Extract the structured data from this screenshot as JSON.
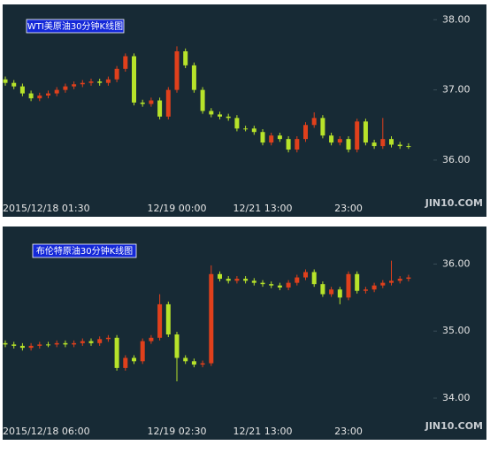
{
  "chart_data": [
    {
      "type": "candlestick",
      "title": "WTI美原油30分钟K线图",
      "watermark": "JIN10.COM",
      "up_color": "#e0401c",
      "down_color": "#b7e32a",
      "background": "#172a35",
      "categories": [
        "2015/12/18 01:30",
        null,
        null,
        null,
        null,
        null,
        null,
        null,
        null,
        null,
        null,
        null,
        null,
        null,
        null,
        null,
        null,
        null,
        null,
        null,
        "12/19 00:00",
        null,
        null,
        null,
        null,
        null,
        null,
        null,
        null,
        null,
        "12/21 13:00",
        null,
        null,
        null,
        null,
        null,
        null,
        null,
        null,
        null,
        "23:00",
        null,
        null,
        null,
        null,
        null,
        null,
        null
      ],
      "open": [
        37.15,
        37.1,
        37.05,
        36.95,
        36.88,
        36.92,
        36.95,
        37.0,
        37.05,
        37.08,
        37.1,
        37.12,
        37.1,
        37.15,
        37.3,
        37.48,
        36.82,
        36.8,
        36.85,
        36.62,
        37.0,
        37.55,
        37.35,
        37.0,
        36.7,
        36.65,
        36.62,
        36.6,
        36.45,
        36.45,
        36.4,
        36.25,
        36.35,
        36.3,
        36.15,
        36.3,
        36.5,
        36.6,
        36.35,
        36.25,
        36.3,
        36.15,
        36.55,
        36.25,
        36.2,
        36.3,
        36.22,
        36.2
      ],
      "high": [
        37.19,
        37.14,
        37.09,
        36.99,
        36.96,
        36.99,
        37.04,
        37.09,
        37.12,
        37.14,
        37.16,
        37.16,
        37.19,
        37.34,
        37.52,
        37.52,
        36.86,
        36.89,
        36.89,
        37.04,
        37.62,
        37.59,
        37.39,
        37.04,
        36.74,
        36.69,
        36.66,
        36.64,
        36.49,
        36.49,
        36.44,
        36.39,
        36.39,
        36.34,
        36.34,
        36.54,
        36.68,
        36.64,
        36.39,
        36.34,
        36.34,
        36.59,
        36.59,
        36.29,
        36.6,
        36.34,
        36.26,
        36.24
      ],
      "low": [
        37.06,
        37.01,
        36.91,
        36.84,
        36.84,
        36.88,
        36.91,
        36.96,
        37.01,
        37.04,
        37.06,
        37.06,
        37.06,
        37.11,
        37.26,
        36.78,
        36.76,
        36.76,
        36.58,
        36.58,
        36.96,
        37.31,
        36.96,
        36.66,
        36.61,
        36.58,
        36.56,
        36.41,
        36.41,
        36.36,
        36.21,
        36.21,
        36.26,
        36.11,
        36.11,
        36.26,
        36.46,
        36.31,
        36.21,
        36.21,
        36.11,
        36.11,
        36.21,
        36.16,
        36.16,
        36.18,
        36.16,
        36.16
      ],
      "close": [
        37.1,
        37.05,
        36.95,
        36.88,
        36.92,
        36.95,
        37.0,
        37.05,
        37.08,
        37.1,
        37.12,
        37.1,
        37.15,
        37.3,
        37.48,
        36.82,
        36.8,
        36.85,
        36.62,
        37.0,
        37.55,
        37.35,
        37.0,
        36.7,
        36.65,
        36.62,
        36.6,
        36.45,
        36.45,
        36.4,
        36.25,
        36.35,
        36.3,
        36.15,
        36.3,
        36.5,
        36.6,
        36.35,
        36.25,
        36.3,
        36.15,
        36.55,
        36.25,
        36.2,
        36.3,
        36.22,
        36.2,
        36.2
      ],
      "ylim": [
        35.47,
        38.18
      ],
      "yticks": [
        {
          "value": 36,
          "label": "36.00"
        },
        {
          "value": 37,
          "label": "37.00"
        },
        {
          "value": 38,
          "label": "38.00"
        }
      ]
    },
    {
      "type": "candlestick",
      "title": "布伦特原油30分钟K线图",
      "watermark": "JIN10.COM",
      "up_color": "#e0401c",
      "down_color": "#b7e32a",
      "background": "#172a35",
      "categories": [
        "2015/12/18 06:00",
        null,
        null,
        null,
        null,
        null,
        null,
        null,
        null,
        null,
        null,
        null,
        null,
        null,
        null,
        null,
        null,
        null,
        null,
        null,
        "12/19 02:30",
        null,
        null,
        null,
        null,
        null,
        null,
        null,
        null,
        null,
        "12/21 13:00",
        null,
        null,
        null,
        null,
        null,
        null,
        null,
        null,
        null,
        "23:00",
        null,
        null,
        null,
        null,
        null,
        null,
        null
      ],
      "open": [
        34.82,
        34.8,
        34.78,
        34.75,
        34.78,
        34.8,
        34.8,
        34.82,
        34.8,
        34.82,
        34.85,
        34.82,
        34.88,
        34.9,
        34.45,
        34.6,
        34.55,
        34.85,
        34.9,
        35.4,
        34.95,
        34.6,
        34.55,
        34.5,
        34.52,
        35.85,
        35.78,
        35.75,
        35.78,
        35.75,
        35.72,
        35.7,
        35.68,
        35.65,
        35.72,
        35.8,
        35.88,
        35.7,
        35.55,
        35.62,
        35.5,
        35.85,
        35.6,
        35.62,
        35.68,
        35.72,
        35.75,
        35.78
      ],
      "high": [
        34.86,
        34.84,
        34.82,
        34.82,
        34.84,
        34.84,
        34.86,
        34.86,
        34.86,
        34.89,
        34.89,
        34.92,
        34.94,
        34.94,
        34.64,
        34.64,
        34.89,
        34.94,
        35.55,
        35.44,
        34.99,
        34.64,
        34.59,
        34.56,
        35.98,
        35.89,
        35.82,
        35.82,
        35.82,
        35.79,
        35.76,
        35.74,
        35.72,
        35.76,
        35.84,
        35.92,
        35.92,
        35.74,
        35.66,
        35.66,
        35.89,
        35.89,
        35.66,
        35.72,
        35.76,
        36.05,
        35.82,
        35.84
      ],
      "low": [
        34.76,
        34.74,
        34.71,
        34.71,
        34.74,
        34.76,
        34.76,
        34.76,
        34.76,
        34.78,
        34.78,
        34.78,
        34.84,
        34.41,
        34.41,
        34.51,
        34.51,
        34.81,
        34.86,
        34.91,
        34.25,
        34.51,
        34.46,
        34.46,
        34.48,
        35.74,
        35.71,
        35.71,
        35.71,
        35.68,
        35.66,
        35.64,
        35.61,
        35.61,
        35.68,
        35.76,
        35.66,
        35.51,
        35.51,
        35.4,
        35.46,
        35.56,
        35.56,
        35.58,
        35.64,
        35.68,
        35.71,
        35.74
      ],
      "close": [
        34.8,
        34.78,
        34.75,
        34.78,
        34.8,
        34.8,
        34.82,
        34.8,
        34.82,
        34.85,
        34.82,
        34.88,
        34.9,
        34.45,
        34.6,
        34.55,
        34.85,
        34.9,
        35.4,
        34.95,
        34.6,
        34.55,
        34.5,
        34.52,
        35.85,
        35.78,
        35.75,
        35.78,
        35.75,
        35.72,
        35.7,
        35.68,
        35.65,
        35.72,
        35.8,
        35.88,
        35.7,
        35.55,
        35.62,
        35.5,
        35.85,
        35.6,
        35.62,
        35.68,
        35.72,
        35.75,
        35.78,
        35.8
      ],
      "ylim": [
        33.67,
        36.52
      ],
      "yticks": [
        {
          "value": 34,
          "label": "34.00"
        },
        {
          "value": 35,
          "label": "35.00"
        },
        {
          "value": 36,
          "label": "36.00"
        }
      ]
    }
  ]
}
